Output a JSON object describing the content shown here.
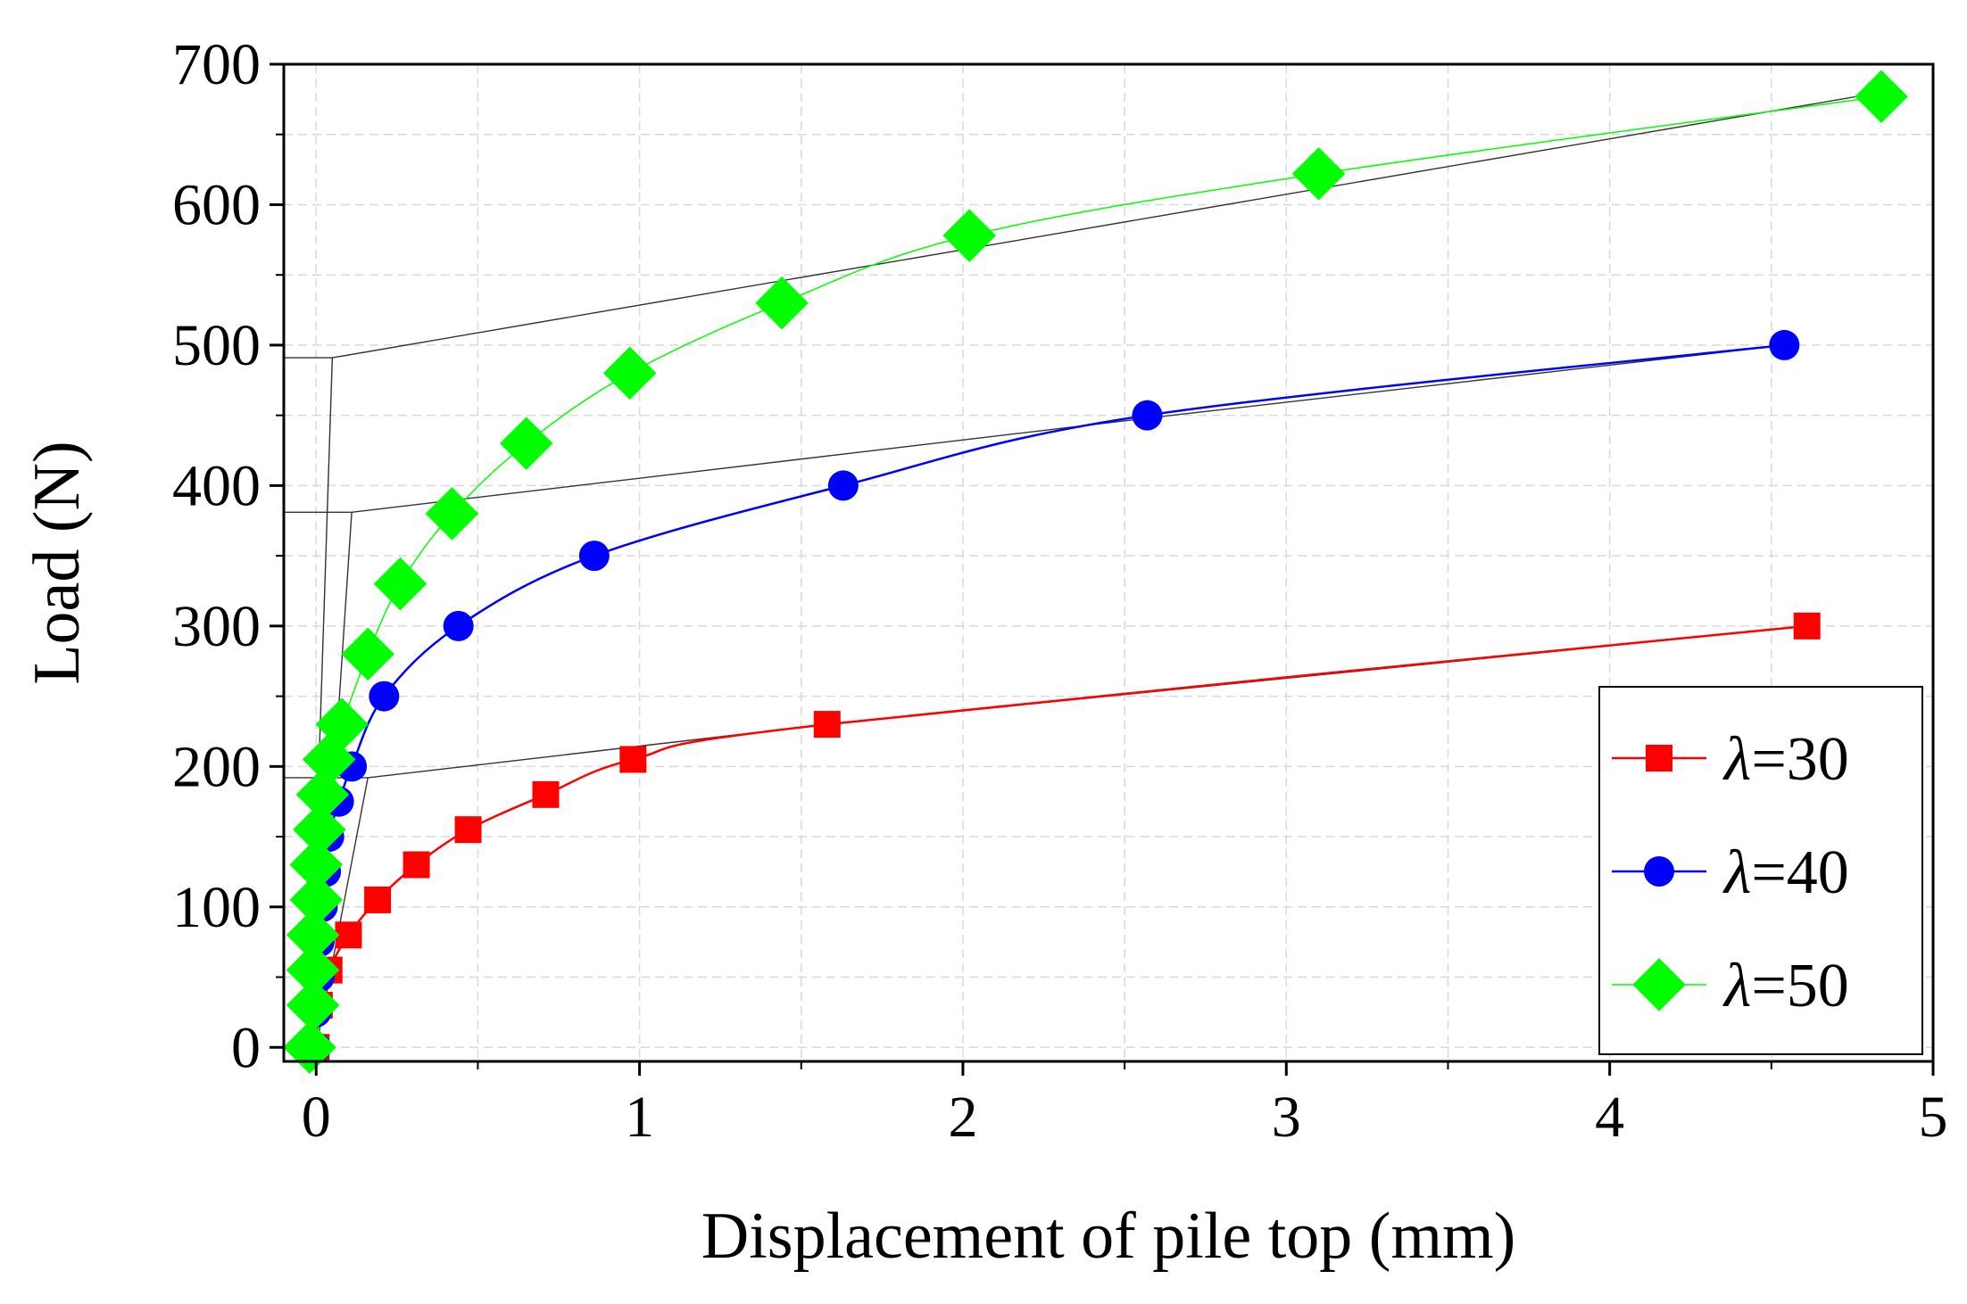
{
  "chart_data": {
    "type": "line",
    "title": "",
    "xlabel": "Displacement of pile top (mm)",
    "ylabel": "Load (N)",
    "xlim": [
      -0.1,
      5
    ],
    "ylim": [
      -10,
      700
    ],
    "xticks": [
      "0",
      "1",
      "2",
      "3",
      "4",
      "5"
    ],
    "yticks": [
      "0",
      "100",
      "200",
      "300",
      "400",
      "500",
      "600",
      "700"
    ],
    "grid": true,
    "legend_position": "bottom-right",
    "series": [
      {
        "name": "λ=30",
        "legend_symbol": "λ",
        "legend_value": "=30",
        "color": "#ff0000",
        "marker": "square",
        "x": [
          0.0,
          0.01,
          0.04,
          0.1,
          0.19,
          0.31,
          0.47,
          0.71,
          0.98,
          1.58,
          4.61
        ],
        "y": [
          0,
          30,
          55,
          80,
          105,
          130,
          155,
          180,
          205,
          230,
          300
        ]
      },
      {
        "name": "λ=40",
        "legend_symbol": "λ",
        "legend_value": "=40",
        "color": "#0000ff",
        "marker": "circle",
        "x": [
          0.0,
          0.0,
          0.01,
          0.01,
          0.02,
          0.03,
          0.04,
          0.07,
          0.11,
          0.21,
          0.44,
          0.86,
          1.63,
          2.57,
          4.54
        ],
        "y": [
          0,
          25,
          50,
          75,
          100,
          125,
          150,
          175,
          200,
          250,
          300,
          350,
          400,
          450,
          500
        ]
      },
      {
        "name": "λ=50",
        "legend_symbol": "λ",
        "legend_value": "=50",
        "color": "#00ff00",
        "marker": "diamond",
        "x": [
          -0.02,
          -0.01,
          -0.01,
          -0.01,
          0.0,
          0.0,
          0.01,
          0.02,
          0.04,
          0.08,
          0.16,
          0.26,
          0.42,
          0.65,
          0.97,
          1.44,
          2.02,
          3.1,
          4.84
        ],
        "y": [
          0,
          30,
          55,
          80,
          105,
          130,
          155,
          180,
          205,
          230,
          280,
          330,
          380,
          430,
          480,
          530,
          578,
          622,
          677
        ]
      }
    ],
    "tangent_lines": [
      {
        "color": "#333333",
        "points": [
          [
            -0.1,
            192
          ],
          [
            0.16,
            192
          ],
          [
            0.0,
            0
          ]
        ]
      },
      {
        "color": "#333333",
        "points": [
          [
            0.16,
            192
          ],
          [
            1.58,
            230
          ],
          [
            4.61,
            300
          ]
        ]
      },
      {
        "color": "#333333",
        "points": [
          [
            -0.1,
            381
          ],
          [
            0.11,
            381
          ],
          [
            0.0,
            0
          ]
        ]
      },
      {
        "color": "#333333",
        "points": [
          [
            0.11,
            381
          ],
          [
            2.57,
            448
          ],
          [
            4.54,
            500
          ]
        ]
      },
      {
        "color": "#333333",
        "points": [
          [
            -0.1,
            491
          ],
          [
            0.05,
            491
          ],
          [
            -0.02,
            0
          ]
        ]
      },
      {
        "color": "#333333",
        "points": [
          [
            0.05,
            491
          ],
          [
            4.84,
            680
          ]
        ]
      }
    ]
  }
}
